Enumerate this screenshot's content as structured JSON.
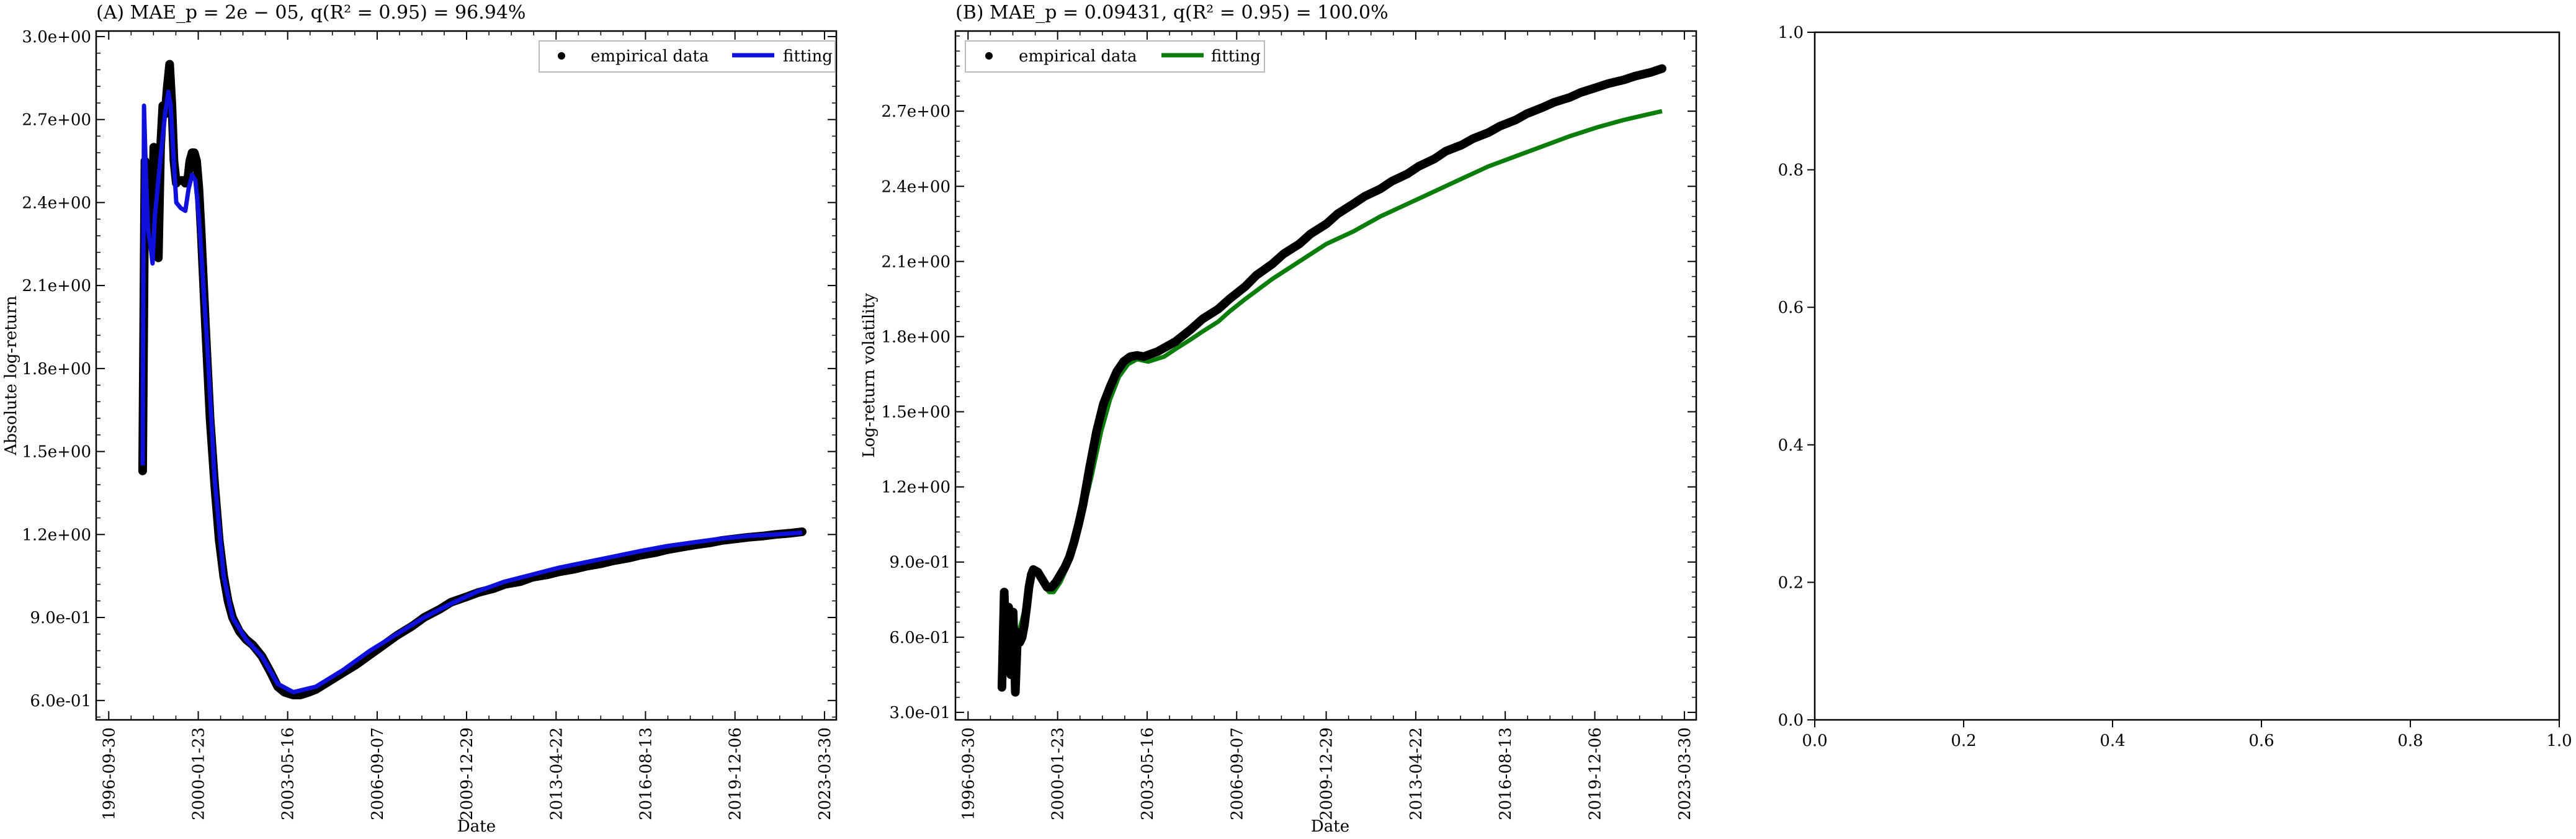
{
  "chart_data": [
    {
      "type": "line",
      "title": "(A) MAE_p = 2e − 05, q(R² = 0.95) = 96.94%",
      "xlabel": "Date",
      "ylabel": "Absolute log-return",
      "x_range": [
        "1996-09-30",
        "2023-03-30"
      ],
      "x_ticks": [
        "1996-09-30",
        "2000-01-23",
        "2003-05-16",
        "2006-09-07",
        "2009-12-29",
        "2013-04-22",
        "2016-08-13",
        "2019-12-06",
        "2023-03-30"
      ],
      "ylim": [
        0.53,
        3.02
      ],
      "y_ticks": [
        0.6,
        0.9,
        1.2,
        1.5,
        1.8,
        2.1,
        2.4,
        2.7,
        3.0
      ],
      "y_tick_labels": [
        "6.0e-01",
        "9.0e-01",
        "1.2e+00",
        "1.5e+00",
        "1.8e+00",
        "2.1e+00",
        "2.4e+00",
        "2.7e+00",
        "3.0e+00"
      ],
      "legend": {
        "position": "top-right",
        "entries": [
          "empirical data",
          "fitting"
        ]
      },
      "series": [
        {
          "name": "empirical data",
          "kind": "scatter",
          "color": "#000000",
          "x": [
            "1998-01-01",
            "1998-02-01",
            "1998-03-01",
            "1998-04-01",
            "1998-05-01",
            "1998-06-01",
            "1998-07-01",
            "1998-08-01",
            "1998-09-01",
            "1998-10-01",
            "1998-11-01",
            "1998-12-01",
            "1999-01-01",
            "1999-02-01",
            "1999-03-01",
            "1999-04-01",
            "1999-05-01",
            "1999-06-01",
            "1999-07-01",
            "1999-08-01",
            "1999-09-01",
            "1999-10-01",
            "1999-11-01",
            "1999-12-01",
            "2000-01-01",
            "2000-02-01",
            "2000-03-01",
            "2000-04-01",
            "2000-05-01",
            "2000-07-01",
            "2000-09-01",
            "2000-11-01",
            "2001-01-01",
            "2001-03-01",
            "2001-05-01",
            "2001-08-01",
            "2001-11-01",
            "2002-02-01",
            "2002-06-01",
            "2002-10-01",
            "2003-01-01",
            "2003-04-01",
            "2003-08-01",
            "2003-11-01",
            "2004-03-01",
            "2004-06-01",
            "2004-09-01",
            "2004-12-01",
            "2005-03-01",
            "2005-06-01",
            "2005-12-01",
            "2006-06-01",
            "2006-12-01",
            "2007-06-01",
            "2008-01-01",
            "2008-06-01",
            "2009-01-01",
            "2009-06-01",
            "2010-01-01",
            "2010-06-01",
            "2011-01-01",
            "2011-06-01",
            "2012-01-01",
            "2012-06-01",
            "2013-01-01",
            "2013-06-01",
            "2014-01-01",
            "2014-06-01",
            "2015-01-01",
            "2015-06-01",
            "2016-01-01",
            "2016-06-01",
            "2017-01-01",
            "2017-06-01",
            "2018-01-01",
            "2018-06-01",
            "2019-01-01",
            "2019-06-01",
            "2020-01-01",
            "2020-06-01",
            "2021-01-01",
            "2021-06-01",
            "2022-01-01",
            "2022-06-01"
          ],
          "y": [
            1.43,
            2.55,
            2.35,
            2.5,
            2.25,
            2.6,
            2.42,
            2.2,
            2.6,
            2.75,
            2.72,
            2.82,
            2.9,
            2.75,
            2.55,
            2.47,
            2.48,
            2.48,
            2.48,
            2.47,
            2.48,
            2.55,
            2.58,
            2.58,
            2.55,
            2.45,
            2.3,
            2.12,
            1.95,
            1.62,
            1.38,
            1.18,
            1.05,
            0.96,
            0.9,
            0.85,
            0.82,
            0.8,
            0.76,
            0.7,
            0.65,
            0.63,
            0.62,
            0.62,
            0.63,
            0.64,
            0.655,
            0.67,
            0.685,
            0.7,
            0.73,
            0.765,
            0.8,
            0.835,
            0.87,
            0.9,
            0.93,
            0.955,
            0.975,
            0.99,
            1.005,
            1.02,
            1.03,
            1.045,
            1.055,
            1.065,
            1.075,
            1.085,
            1.095,
            1.105,
            1.115,
            1.125,
            1.135,
            1.145,
            1.155,
            1.162,
            1.17,
            1.178,
            1.185,
            1.19,
            1.195,
            1.2,
            1.205,
            1.21
          ]
        },
        {
          "name": "fitting",
          "kind": "line",
          "color": "#1010dd",
          "x": [
            "1998-01-01",
            "1998-01-20",
            "1998-02-15",
            "1998-03-15",
            "1998-04-15",
            "1998-05-15",
            "1998-06-15",
            "1998-08-01",
            "1998-09-15",
            "1998-11-01",
            "1998-12-15",
            "1999-01-15",
            "1999-02-15",
            "1999-04-01",
            "1999-06-01",
            "1999-08-01",
            "1999-09-15",
            "1999-11-01",
            "1999-12-15",
            "2000-02-01",
            "2000-04-01",
            "2000-06-01",
            "2000-09-01",
            "2001-01-01",
            "2001-05-01",
            "2001-11-01",
            "2002-06-01",
            "2003-01-01",
            "2003-08-01",
            "2004-06-01",
            "2005-06-01",
            "2006-06-01",
            "2007-06-01",
            "2008-06-01",
            "2009-06-01",
            "2010-06-01",
            "2011-06-01",
            "2012-06-01",
            "2013-06-01",
            "2014-06-01",
            "2015-06-01",
            "2016-06-01",
            "2017-06-01",
            "2018-06-01",
            "2019-06-01",
            "2020-06-01",
            "2021-06-01",
            "2022-06-01"
          ],
          "y": [
            1.45,
            2.75,
            2.5,
            2.3,
            2.25,
            2.18,
            2.35,
            2.48,
            2.6,
            2.72,
            2.8,
            2.75,
            2.6,
            2.4,
            2.38,
            2.37,
            2.45,
            2.5,
            2.48,
            2.35,
            2.1,
            1.85,
            1.4,
            1.05,
            0.9,
            0.82,
            0.76,
            0.66,
            0.63,
            0.65,
            0.71,
            0.78,
            0.84,
            0.9,
            0.95,
            0.995,
            1.03,
            1.055,
            1.08,
            1.1,
            1.12,
            1.14,
            1.158,
            1.172,
            1.185,
            1.195,
            1.2,
            1.207
          ]
        }
      ]
    },
    {
      "type": "line",
      "title": "(B) MAE_p = 0.09431, q(R² = 0.95) = 100.0%",
      "xlabel": "Date",
      "ylabel": "Log-return volatility",
      "x_range": [
        "1996-09-30",
        "2023-03-30"
      ],
      "x_ticks": [
        "1996-09-30",
        "2000-01-23",
        "2003-05-16",
        "2006-09-07",
        "2009-12-29",
        "2013-04-22",
        "2016-08-13",
        "2019-12-06",
        "2023-03-30"
      ],
      "ylim": [
        0.27,
        3.02
      ],
      "y_ticks": [
        0.3,
        0.6,
        0.9,
        1.2,
        1.5,
        1.8,
        2.1,
        2.4,
        2.7
      ],
      "y_tick_labels": [
        "3.0e-01",
        "6.0e-01",
        "9.0e-01",
        "1.2e+00",
        "1.5e+00",
        "1.8e+00",
        "2.1e+00",
        "2.4e+00",
        "2.7e+00"
      ],
      "legend": {
        "position": "top-left",
        "entries": [
          "empirical data",
          "fitting"
        ]
      },
      "series": [
        {
          "name": "empirical data",
          "kind": "scatter",
          "color": "#000000",
          "x": [
            "1998-01-01",
            "1998-02-01",
            "1998-03-01",
            "1998-04-01",
            "1998-05-01",
            "1998-06-01",
            "1998-07-01",
            "1998-08-01",
            "1998-09-01",
            "1998-10-01",
            "1998-11-01",
            "1998-12-01",
            "1999-01-01",
            "1999-02-01",
            "1999-03-01",
            "1999-05-01",
            "1999-07-01",
            "1999-09-01",
            "1999-11-01",
            "2000-01-01",
            "2000-03-01",
            "2000-05-01",
            "2000-07-01",
            "2000-09-01",
            "2000-11-01",
            "2001-01-01",
            "2001-04-01",
            "2001-07-01",
            "2001-10-01",
            "2002-01-01",
            "2002-04-01",
            "2002-07-01",
            "2002-10-01",
            "2003-01-01",
            "2003-04-01",
            "2003-07-01",
            "2003-10-01",
            "2004-01-01",
            "2004-06-01",
            "2005-01-01",
            "2005-06-01",
            "2006-01-01",
            "2006-06-01",
            "2007-01-01",
            "2007-06-01",
            "2008-01-01",
            "2008-06-01",
            "2009-01-01",
            "2009-06-01",
            "2010-01-01",
            "2010-06-01",
            "2011-01-01",
            "2011-06-01",
            "2012-01-01",
            "2012-06-01",
            "2013-01-01",
            "2013-06-01",
            "2014-01-01",
            "2014-06-01",
            "2015-01-01",
            "2015-06-01",
            "2016-01-01",
            "2016-06-01",
            "2017-01-01",
            "2017-06-01",
            "2018-01-01",
            "2018-06-01",
            "2019-01-01",
            "2019-06-01",
            "2020-01-01",
            "2020-06-01",
            "2021-01-01",
            "2021-06-01",
            "2022-01-01",
            "2022-06-01"
          ],
          "y": [
            0.4,
            0.78,
            0.5,
            0.72,
            0.45,
            0.7,
            0.38,
            0.62,
            0.58,
            0.6,
            0.65,
            0.72,
            0.8,
            0.85,
            0.87,
            0.86,
            0.83,
            0.8,
            0.8,
            0.82,
            0.85,
            0.88,
            0.92,
            0.98,
            1.05,
            1.13,
            1.28,
            1.42,
            1.53,
            1.6,
            1.66,
            1.7,
            1.72,
            1.725,
            1.72,
            1.73,
            1.74,
            1.755,
            1.78,
            1.83,
            1.87,
            1.91,
            1.95,
            2.0,
            2.045,
            2.09,
            2.13,
            2.17,
            2.21,
            2.25,
            2.29,
            2.33,
            2.36,
            2.39,
            2.42,
            2.45,
            2.48,
            2.51,
            2.54,
            2.565,
            2.59,
            2.615,
            2.64,
            2.665,
            2.69,
            2.715,
            2.735,
            2.755,
            2.775,
            2.795,
            2.81,
            2.825,
            2.84,
            2.855,
            2.87
          ]
        },
        {
          "name": "fitting",
          "kind": "line",
          "color": "#0b7d0b",
          "x": [
            "1998-01-01",
            "1998-02-15",
            "1998-04-01",
            "1998-05-15",
            "1998-07-01",
            "1998-08-15",
            "1998-10-01",
            "1998-12-01",
            "1999-02-01",
            "1999-04-01",
            "1999-06-01",
            "1999-08-01",
            "1999-10-01",
            "1999-12-01",
            "2000-03-01",
            "2000-06-01",
            "2000-09-01",
            "2001-01-01",
            "2001-05-01",
            "2001-09-01",
            "2002-01-01",
            "2002-05-01",
            "2002-09-01",
            "2003-01-01",
            "2003-06-01",
            "2004-01-01",
            "2004-06-01",
            "2005-01-01",
            "2005-06-01",
            "2006-01-01",
            "2006-06-01",
            "2007-01-01",
            "2008-01-01",
            "2009-01-01",
            "2010-01-01",
            "2011-01-01",
            "2012-01-01",
            "2013-01-01",
            "2014-01-01",
            "2015-01-01",
            "2016-01-01",
            "2017-01-01",
            "2018-01-01",
            "2019-01-01",
            "2020-01-01",
            "2021-01-01",
            "2022-01-01",
            "2022-06-01"
          ],
          "y": [
            0.52,
            0.58,
            0.55,
            0.6,
            0.58,
            0.62,
            0.67,
            0.75,
            0.84,
            0.86,
            0.84,
            0.8,
            0.78,
            0.78,
            0.82,
            0.88,
            0.96,
            1.1,
            1.25,
            1.42,
            1.55,
            1.64,
            1.69,
            1.71,
            1.7,
            1.72,
            1.75,
            1.79,
            1.82,
            1.86,
            1.9,
            1.95,
            2.03,
            2.1,
            2.17,
            2.22,
            2.28,
            2.33,
            2.38,
            2.43,
            2.48,
            2.52,
            2.56,
            2.6,
            2.635,
            2.665,
            2.69,
            2.7
          ]
        }
      ]
    },
    {
      "type": "line",
      "title": "",
      "xlabel": "",
      "ylabel": "",
      "xlim": [
        0,
        1
      ],
      "ylim": [
        0,
        1
      ],
      "x_ticks": [
        0,
        0.2,
        0.4,
        0.6,
        0.8,
        1.0
      ],
      "x_tick_labels": [
        "0.0",
        "0.2",
        "0.4",
        "0.6",
        "0.8",
        "1.0"
      ],
      "y_ticks": [
        0,
        0.2,
        0.4,
        0.6,
        0.8,
        1.0
      ],
      "y_tick_labels": [
        "0.0",
        "0.2",
        "0.4",
        "0.6",
        "0.8",
        "1.0"
      ],
      "series": []
    }
  ]
}
